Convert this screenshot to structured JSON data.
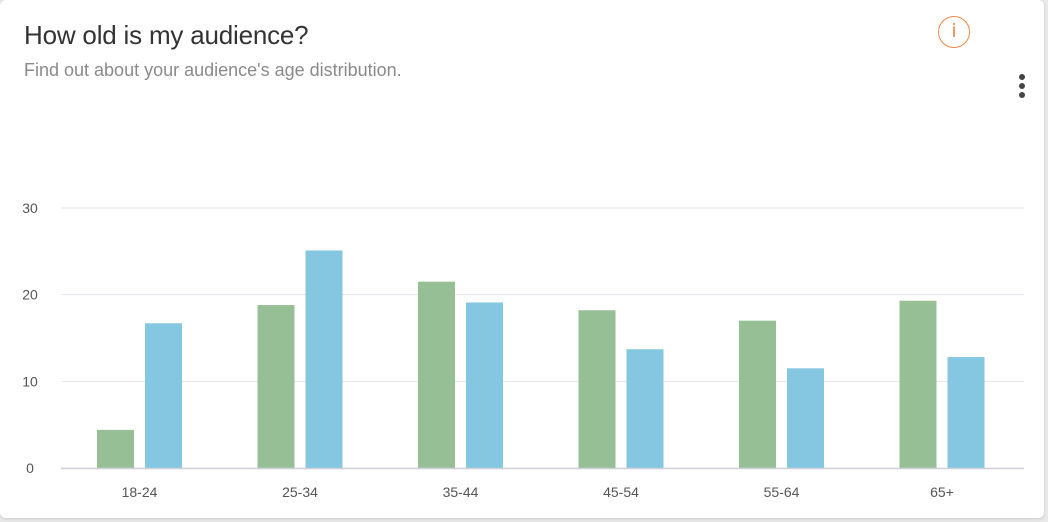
{
  "header": {
    "title": "How old is my audience?",
    "subtitle": "Find out about your audience's age distribution.",
    "info_icon": "info-icon",
    "info_glyph": "i",
    "more_icon": "more-vertical-icon"
  },
  "colors": {
    "series_1": "#97bf95",
    "series_2": "#85c6e1",
    "grid": "#e3e3ea",
    "axis": "#cfcfdc",
    "accent": "#ef8a4c"
  },
  "chart_data": {
    "type": "bar",
    "categories": [
      "18-24",
      "25-34",
      "35-44",
      "45-54",
      "55-64",
      "65+"
    ],
    "series": [
      {
        "values": [
          4.4,
          18.8,
          21.5,
          18.2,
          17.0,
          19.3
        ]
      },
      {
        "values": [
          16.7,
          25.1,
          19.1,
          13.7,
          11.5,
          12.8
        ]
      }
    ],
    "ylim": [
      0,
      30
    ],
    "yticks": [
      0,
      10,
      20,
      30
    ],
    "grid": true,
    "legend": "none"
  }
}
